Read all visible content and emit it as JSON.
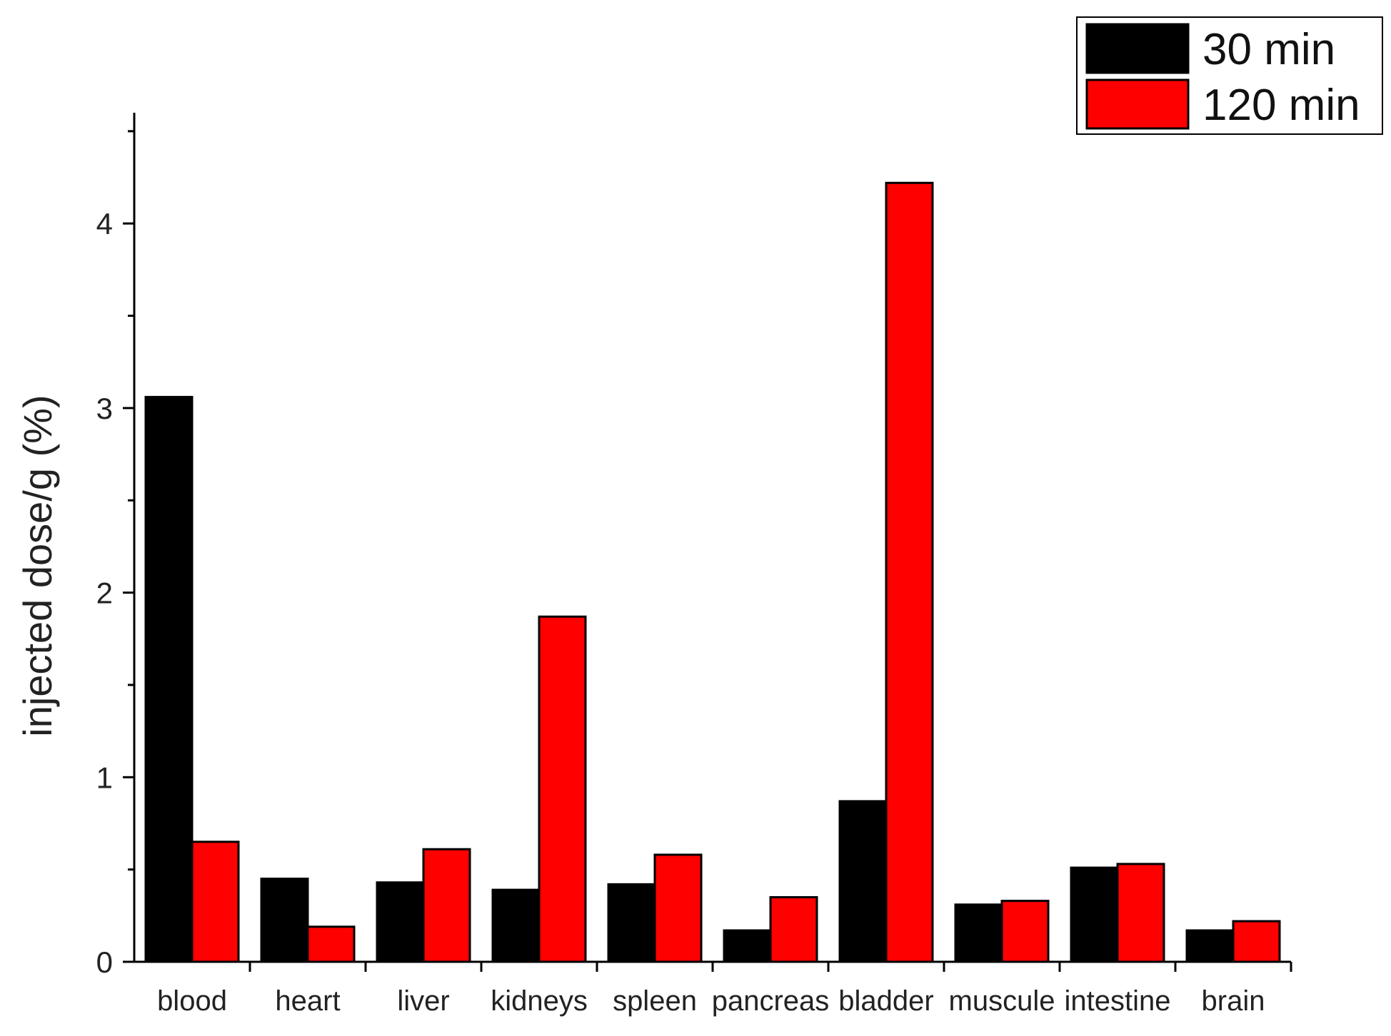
{
  "chart_data": {
    "type": "bar",
    "title": "",
    "xlabel": "",
    "ylabel": "injected dose/g (%)",
    "ylim": [
      0,
      4.6
    ],
    "yticks": [
      0,
      1,
      2,
      3,
      4
    ],
    "ytick_labels": [
      "0",
      "1",
      "2",
      "3",
      "4"
    ],
    "categories": [
      "blood",
      "heart",
      "liver",
      "kidneys",
      "spleen",
      "pancreas",
      "bladder",
      "muscule",
      "intestine",
      "brain"
    ],
    "series": [
      {
        "name": "30 min",
        "color": "#000000",
        "values": [
          3.06,
          0.45,
          0.43,
          0.39,
          0.42,
          0.17,
          0.87,
          0.31,
          0.51,
          0.17
        ]
      },
      {
        "name": "120 min",
        "color": "#ff0000",
        "values": [
          0.65,
          0.19,
          0.61,
          1.87,
          0.58,
          0.35,
          4.22,
          0.33,
          0.53,
          0.22
        ]
      }
    ],
    "legend_position": "top-right",
    "grid": false
  }
}
